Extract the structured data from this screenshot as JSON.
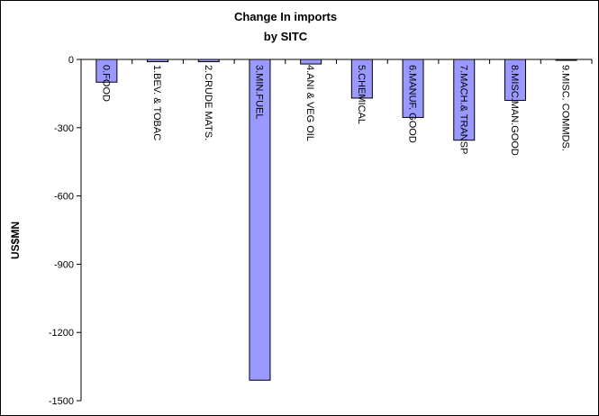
{
  "chart_data": {
    "type": "bar",
    "title": "Change In imports",
    "subtitle": "by SITC",
    "xlabel": "",
    "ylabel": "US$MN",
    "categories": [
      "0.FOOD",
      "1.BEV. & TOBAC",
      "2.CRUDE MATS.",
      "3.MIN.FUEL",
      "4.ANI & VEG OIL",
      "5.CHEMICAL",
      "6.MANUF. GOOD",
      "7.MACH.& TRANSP",
      "8.MISC.MAN.GOOD",
      "9.MISC. COMMDS."
    ],
    "values": [
      -100,
      -10,
      -10,
      -1410,
      -20,
      -170,
      -255,
      -355,
      -180,
      -3
    ],
    "ylim": [
      -1500,
      0
    ],
    "yticks": [
      0,
      -300,
      -600,
      -900,
      -1200,
      -1500
    ],
    "grid": false,
    "legend": "none",
    "bar_color": "#9999ff",
    "bar_edge_color": "#000000"
  }
}
